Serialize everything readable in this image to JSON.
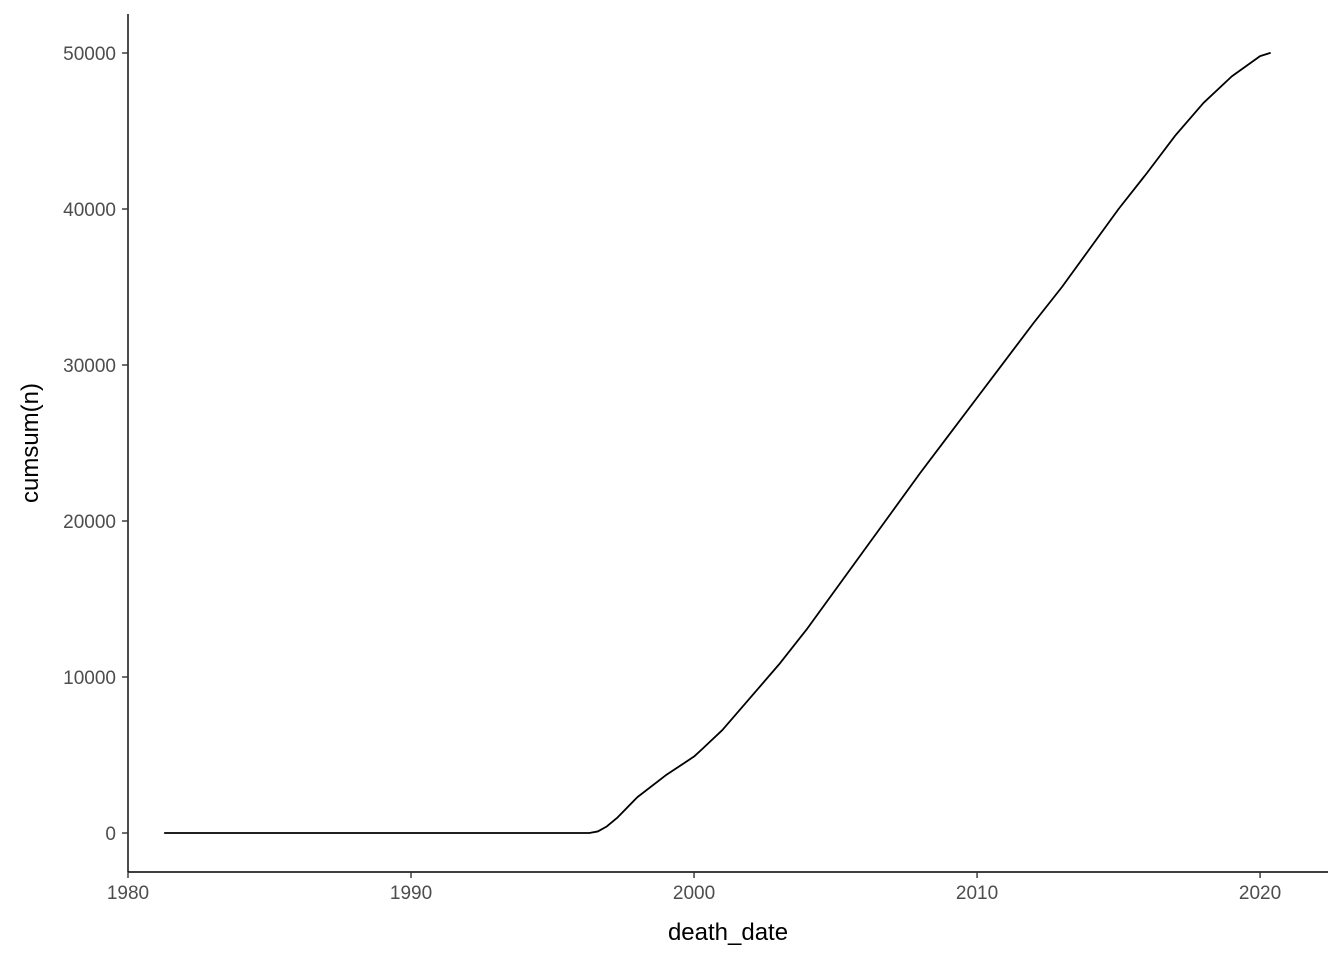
{
  "chart_data": {
    "type": "line",
    "title": "",
    "xlabel": "death_date",
    "ylabel": "cumsum(n)",
    "xlim": [
      1980,
      2022.4
    ],
    "ylim": [
      -2500,
      52500
    ],
    "x_ticks": [
      1980,
      1990,
      2000,
      2010,
      2020
    ],
    "y_ticks": [
      0,
      10000,
      20000,
      30000,
      40000,
      50000
    ],
    "grid": false,
    "legend": "none",
    "line_color": "#000000",
    "series": [
      {
        "x": [
          1981.3,
          1985.0,
          1990.0,
          1995.0,
          1996.3,
          1996.6,
          1996.9,
          1997.3,
          1998.0,
          1999.0,
          2000.0,
          2000.3,
          2001.0,
          2002.0,
          2003.0,
          2004.0,
          2005.0,
          2006.0,
          2007.0,
          2008.0,
          2009.0,
          2010.0,
          2011.0,
          2012.0,
          2013.0,
          2014.0,
          2015.0,
          2016.0,
          2017.0,
          2018.0,
          2019.0,
          2020.0,
          2020.35
        ],
        "y": [
          0,
          0,
          0,
          0,
          0,
          100,
          400,
          1000,
          2300,
          3700,
          4900,
          5400,
          6600,
          8700,
          10800,
          13100,
          15600,
          18100,
          20600,
          23100,
          25500,
          27900,
          30300,
          32700,
          35000,
          37500,
          40000,
          42300,
          44700,
          46800,
          48500,
          49800,
          50000
        ]
      }
    ]
  }
}
